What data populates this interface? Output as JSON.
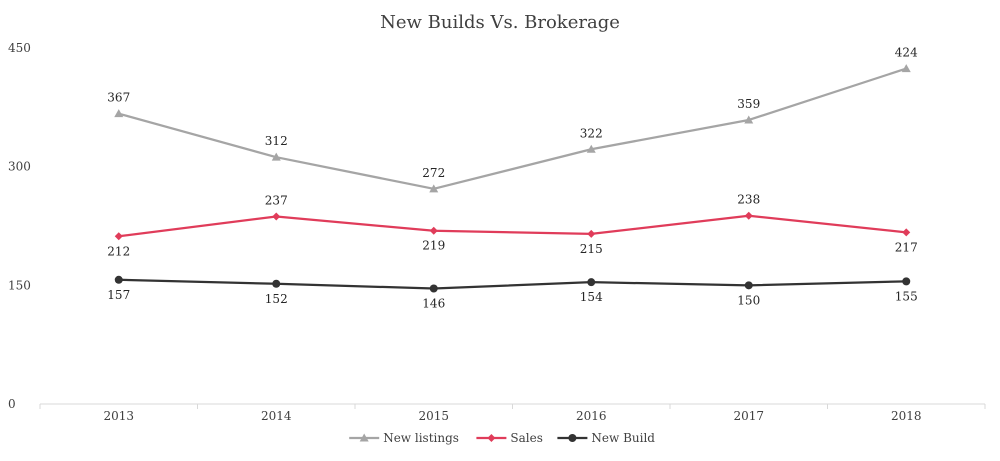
{
  "chart_data": {
    "type": "line",
    "title": "New Builds Vs. Brokerage",
    "xlabel": "",
    "ylabel": "",
    "categories": [
      "2013",
      "2014",
      "2015",
      "2016",
      "2017",
      "2018"
    ],
    "ylim": [
      0,
      450
    ],
    "yticks": [
      0,
      150,
      300,
      450
    ],
    "grid": false,
    "legend_position": "bottom",
    "series": [
      {
        "name": "New listings",
        "values": [
          367,
          312,
          272,
          322,
          359,
          424
        ],
        "color": "#a5a5a5",
        "marker": "triangle",
        "label_position": "above"
      },
      {
        "name": "Sales",
        "values": [
          212,
          237,
          219,
          215,
          238,
          217
        ],
        "color": "#e03c5a",
        "marker": "diamond",
        "label_position": "mixed"
      },
      {
        "name": "New Build",
        "values": [
          157,
          152,
          146,
          154,
          150,
          155
        ],
        "color": "#333333",
        "marker": "circle",
        "label_position": "below"
      }
    ]
  }
}
